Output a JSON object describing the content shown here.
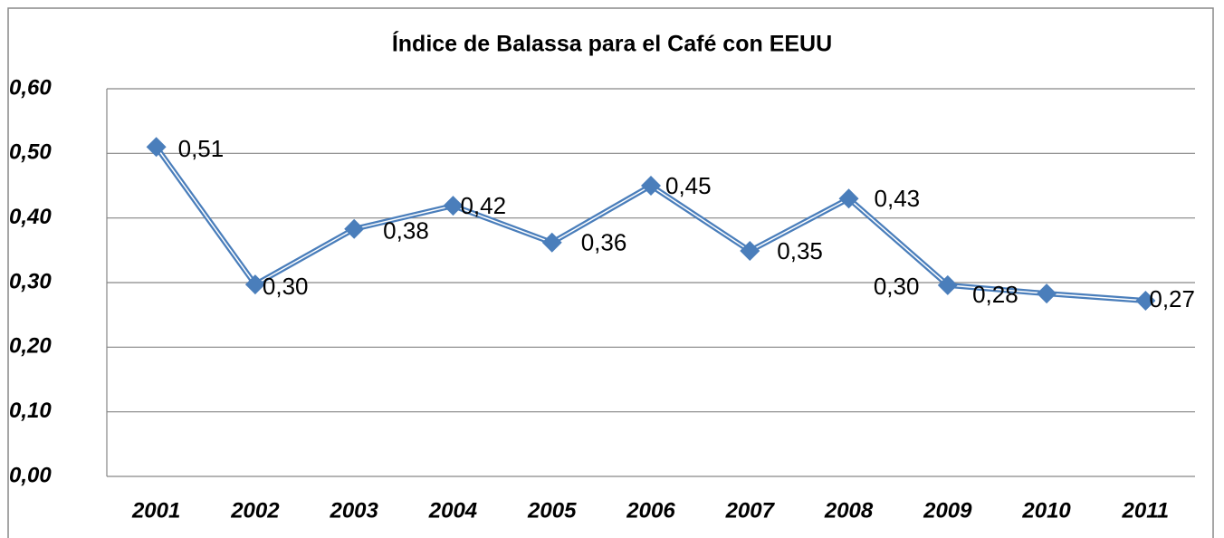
{
  "chart_data": {
    "type": "line",
    "title": "Índice de Balassa para el Café con EEUU",
    "categories": [
      "2001",
      "2002",
      "2003",
      "2004",
      "2005",
      "2006",
      "2007",
      "2008",
      "2009",
      "2010",
      "2011"
    ],
    "series": [
      {
        "color": "#4a7ebb",
        "values": [
          0.51,
          0.297,
          0.383,
          0.419,
          0.362,
          0.45,
          0.349,
          0.43,
          0.296,
          0.283,
          0.272
        ],
        "value_labels": [
          "0,51",
          "0,30",
          "0,38",
          "0,42",
          "0,36",
          "0,45",
          "0,35",
          "0,43",
          "0,30",
          "0,28",
          "0,27"
        ]
      }
    ],
    "ylim": [
      0,
      0.6
    ],
    "yticks": [
      {
        "value": 0,
        "label": "0,00"
      },
      {
        "value": 0.1,
        "label": "0,10"
      },
      {
        "value": 0.2,
        "label": "0,20"
      },
      {
        "value": 0.3,
        "label": "0,30"
      },
      {
        "value": 0.4,
        "label": "0,40"
      },
      {
        "value": 0.5,
        "label": "0,50"
      },
      {
        "value": 0.6,
        "label": "0,60"
      }
    ],
    "grid": true
  }
}
